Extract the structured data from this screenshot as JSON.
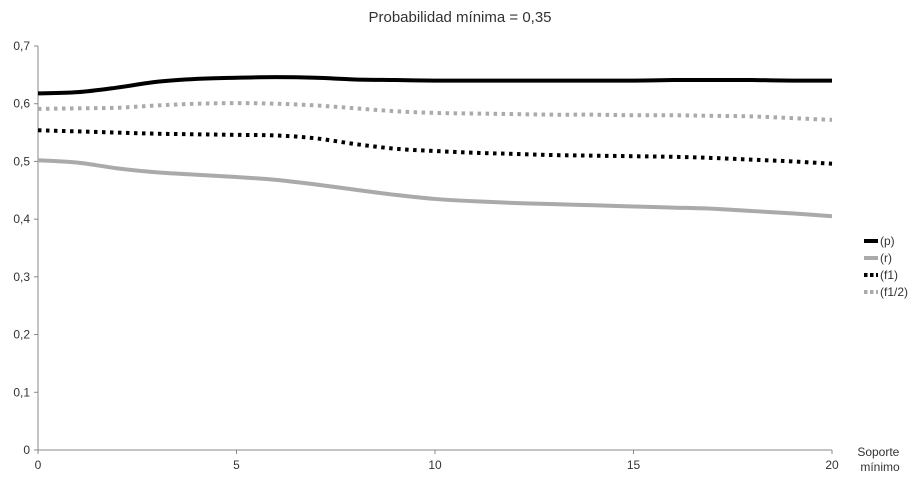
{
  "chart_data": {
    "type": "line",
    "title": "Probabilidad mínima = 0,35",
    "xlabel": "Soporte mínimo",
    "xlabel_lines": [
      "Soporte",
      "mínimo"
    ],
    "ylabel": "",
    "x": [
      0,
      1,
      2,
      3,
      4,
      5,
      6,
      7,
      8,
      9,
      10,
      11,
      12,
      13,
      14,
      15,
      16,
      17,
      18,
      19,
      20
    ],
    "xticks": [
      0,
      5,
      10,
      15,
      20
    ],
    "xtick_labels": [
      "0",
      "5",
      "10",
      "15",
      "20"
    ],
    "xlim": [
      0,
      20
    ],
    "ylim": [
      0,
      0.7
    ],
    "yticks": [
      0,
      0.1,
      0.2,
      0.3,
      0.4,
      0.5,
      0.6,
      0.7
    ],
    "ytick_labels": [
      "0",
      "0,1",
      "0,2",
      "0,3",
      "0,4",
      "0,5",
      "0,6",
      "0,7"
    ],
    "grid": false,
    "legend_position": "right",
    "series": [
      {
        "name": "(p)",
        "color": "#000000",
        "style": "solid",
        "values": [
          0.618,
          0.62,
          0.628,
          0.638,
          0.643,
          0.645,
          0.646,
          0.645,
          0.642,
          0.641,
          0.64,
          0.64,
          0.64,
          0.64,
          0.64,
          0.64,
          0.641,
          0.641,
          0.641,
          0.64,
          0.64
        ]
      },
      {
        "name": "(r)",
        "color": "#aaaaaa",
        "style": "solid",
        "values": [
          0.502,
          0.498,
          0.488,
          0.481,
          0.477,
          0.473,
          0.468,
          0.46,
          0.451,
          0.442,
          0.435,
          0.431,
          0.428,
          0.426,
          0.424,
          0.422,
          0.42,
          0.418,
          0.414,
          0.41,
          0.405
        ]
      },
      {
        "name": "(f1)",
        "color": "#000000",
        "style": "dotted",
        "values": [
          0.554,
          0.552,
          0.55,
          0.548,
          0.547,
          0.546,
          0.545,
          0.54,
          0.53,
          0.522,
          0.518,
          0.515,
          0.513,
          0.511,
          0.51,
          0.509,
          0.508,
          0.506,
          0.503,
          0.5,
          0.496
        ]
      },
      {
        "name": "(f1/2)",
        "color": "#aaaaaa",
        "style": "dotted",
        "values": [
          0.591,
          0.592,
          0.593,
          0.597,
          0.6,
          0.601,
          0.6,
          0.597,
          0.592,
          0.587,
          0.584,
          0.583,
          0.582,
          0.581,
          0.581,
          0.58,
          0.58,
          0.579,
          0.578,
          0.575,
          0.572
        ]
      }
    ]
  }
}
